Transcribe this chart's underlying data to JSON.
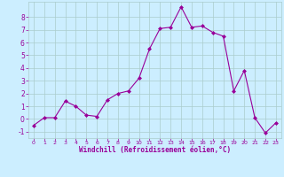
{
  "x": [
    0,
    1,
    2,
    3,
    4,
    5,
    6,
    7,
    8,
    9,
    10,
    11,
    12,
    13,
    14,
    15,
    16,
    17,
    18,
    19,
    20,
    21,
    22,
    23
  ],
  "y": [
    -0.5,
    0.1,
    0.1,
    1.4,
    1.0,
    0.3,
    0.2,
    1.5,
    2.0,
    2.2,
    3.2,
    5.5,
    7.1,
    7.2,
    8.8,
    7.2,
    7.3,
    6.8,
    6.5,
    2.2,
    3.8,
    0.1,
    -1.1,
    -0.3
  ],
  "line_color": "#990099",
  "marker": "D",
  "marker_size": 2,
  "bg_color": "#cceeff",
  "grid_color": "#aacccc",
  "xlabel": "Windchill (Refroidissement éolien,°C)",
  "ylim": [
    -1.5,
    9.2
  ],
  "xlim": [
    -0.5,
    23.5
  ],
  "yticks": [
    -1,
    0,
    1,
    2,
    3,
    4,
    5,
    6,
    7,
    8
  ],
  "xticks": [
    0,
    1,
    2,
    3,
    4,
    5,
    6,
    7,
    8,
    9,
    10,
    11,
    12,
    13,
    14,
    15,
    16,
    17,
    18,
    19,
    20,
    21,
    22,
    23
  ],
  "label_color": "#990099",
  "tick_color": "#990099",
  "figsize": [
    3.2,
    2.0
  ],
  "dpi": 100
}
